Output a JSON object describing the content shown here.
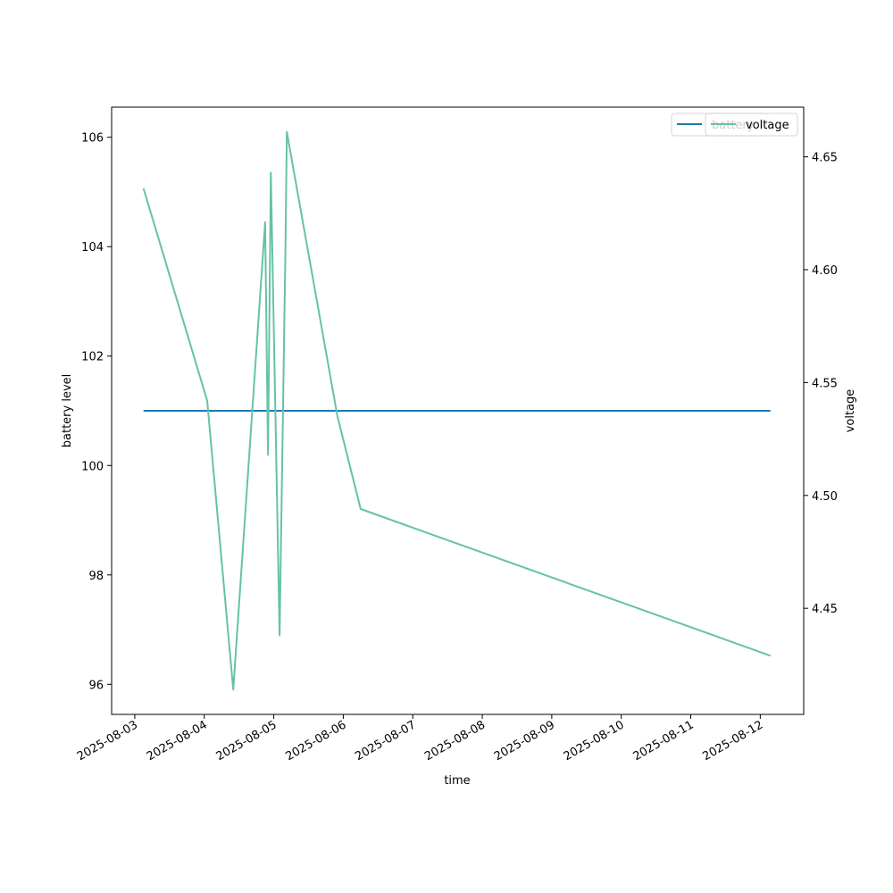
{
  "chart_data": {
    "type": "line",
    "xlabel": "time",
    "ylabel_left": "battery level",
    "ylabel_right": "voltage",
    "x_ticks": [
      "2025-08-03",
      "2025-08-04",
      "2025-08-05",
      "2025-08-06",
      "2025-08-07",
      "2025-08-08",
      "2025-08-09",
      "2025-08-10",
      "2025-08-11",
      "2025-08-12"
    ],
    "left_axis": {
      "ylim": [
        95.45,
        106.55
      ],
      "ticks": [
        96,
        98,
        100,
        102,
        104,
        106
      ]
    },
    "right_axis": {
      "ylim": [
        4.403,
        4.672
      ],
      "ticks": [
        "4.45",
        "4.50",
        "4.55",
        "4.60",
        "4.65"
      ]
    },
    "xlim": [
      "2025-08-02 16:00",
      "2025-08-12 15:00"
    ],
    "legend_position": "upper right",
    "series": [
      {
        "name": "battery",
        "axis": "left",
        "color": "#1f77b4",
        "points": [
          {
            "t": "2025-08-03 03:00",
            "v": 101
          },
          {
            "t": "2025-08-12 03:30",
            "v": 101
          }
        ]
      },
      {
        "name": "voltage",
        "axis": "right",
        "color": "#66c2a5",
        "points": [
          {
            "t": "2025-08-03 03:00",
            "v": 4.636
          },
          {
            "t": "2025-08-04 01:00",
            "v": 4.542
          },
          {
            "t": "2025-08-04 10:00",
            "v": 4.414
          },
          {
            "t": "2025-08-04 21:00",
            "v": 4.621
          },
          {
            "t": "2025-08-04 22:00",
            "v": 4.518
          },
          {
            "t": "2025-08-04 23:00",
            "v": 4.643
          },
          {
            "t": "2025-08-05 02:00",
            "v": 4.438
          },
          {
            "t": "2025-08-05 04:00",
            "v": 4.608
          },
          {
            "t": "2025-08-05 04:30",
            "v": 4.661
          },
          {
            "t": "2025-08-05 22:00",
            "v": 4.535
          },
          {
            "t": "2025-08-06 06:00",
            "v": 4.494
          },
          {
            "t": "2025-08-12 03:30",
            "v": 4.429
          }
        ]
      }
    ]
  }
}
